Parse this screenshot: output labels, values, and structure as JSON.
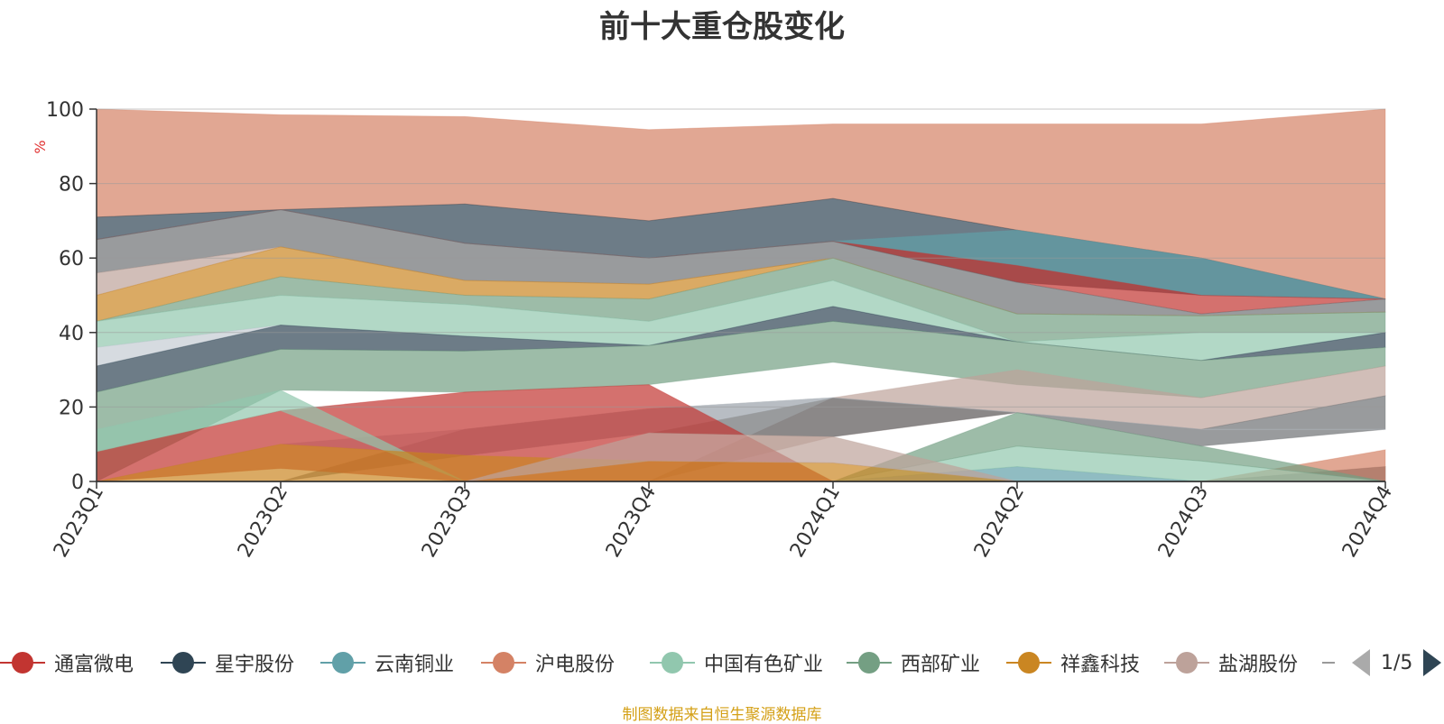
{
  "chart_data": {
    "type": "area",
    "title": "前十大重仓股变化",
    "ylabel": "%",
    "ylim": [
      0,
      100
    ],
    "yticks": [
      0,
      20,
      40,
      60,
      80,
      100
    ],
    "categories": [
      "2023Q1",
      "2023Q2",
      "2023Q3",
      "2023Q4",
      "2024Q1",
      "2024Q2",
      "2024Q3",
      "2024Q4"
    ],
    "grid": true,
    "legend_position": "bottom",
    "series": [
      {
        "name": "通富微电",
        "color": "#c23531",
        "opacity": 0.7,
        "values": [
          [
            0,
            8
          ],
          [
            3.5,
            19
          ],
          [
            0,
            24
          ],
          [
            0,
            26
          ],
          [
            0,
            0
          ],
          [
            0,
            0
          ],
          [
            0,
            0
          ],
          [
            0,
            0
          ]
        ]
      },
      {
        "name": "星宇股份",
        "color": "#2f4554",
        "opacity": 0.7,
        "values": [
          [
            0,
            0
          ],
          [
            0,
            0
          ],
          [
            0,
            0
          ],
          [
            0,
            0
          ],
          [
            0,
            0
          ],
          [
            0,
            0
          ],
          [
            0,
            0
          ],
          [
            0,
            4
          ]
        ]
      },
      {
        "name": "云南铜业",
        "color": "#61a0a8",
        "opacity": 0.7,
        "values": [
          [
            0,
            0
          ],
          [
            0,
            0
          ],
          [
            0,
            0
          ],
          [
            0,
            0
          ],
          [
            0,
            0
          ],
          [
            0,
            4
          ],
          [
            0,
            0
          ],
          [
            0,
            0
          ]
        ]
      },
      {
        "name": "沪电股份",
        "color": "#d48265",
        "opacity": 0.7,
        "values": [
          [
            0,
            0
          ],
          [
            0,
            0
          ],
          [
            0,
            0
          ],
          [
            0,
            0
          ],
          [
            0,
            0
          ],
          [
            0,
            0
          ],
          [
            0,
            0
          ],
          [
            0,
            8.5
          ]
        ]
      },
      {
        "name": "中国有色矿业",
        "color": "#91c7ae",
        "opacity": 0.7,
        "values": [
          [
            8,
            14
          ],
          [
            19,
            24.5
          ],
          [
            0,
            0
          ],
          [
            0,
            0
          ],
          [
            0,
            0
          ],
          [
            4,
            9.5
          ],
          [
            0,
            5.5
          ],
          [
            0,
            0
          ]
        ]
      },
      {
        "name": "西部矿业",
        "color": "#749f83",
        "opacity": 0.7,
        "values": [
          [
            0,
            0
          ],
          [
            0,
            0
          ],
          [
            0,
            0
          ],
          [
            0,
            0
          ],
          [
            0,
            0
          ],
          [
            9.5,
            18.5
          ],
          [
            5.5,
            9.5
          ],
          [
            0,
            0
          ]
        ]
      },
      {
        "name": "祥鑫科技",
        "color": "#ca8622",
        "opacity": 0.7,
        "values": [
          [
            0,
            0
          ],
          [
            0,
            10
          ],
          [
            0,
            7
          ],
          [
            0,
            5.5
          ],
          [
            0,
            5
          ],
          [
            0,
            0
          ],
          [
            0,
            0
          ],
          [
            0,
            0
          ]
        ]
      },
      {
        "name": "盐湖股份",
        "color": "#bda29a",
        "opacity": 0.7,
        "values": [
          [
            0,
            0
          ],
          [
            0,
            0
          ],
          [
            0,
            0
          ],
          [
            5.5,
            13
          ],
          [
            5,
            12
          ],
          [
            0,
            0
          ],
          [
            0,
            0
          ],
          [
            0,
            0
          ]
        ]
      }
    ],
    "background_layers": [
      {
        "color": "#d48265",
        "opacity": 0.7,
        "values": [
          [
            71,
            100
          ],
          [
            73,
            98.5
          ],
          [
            74.5,
            98
          ],
          [
            70,
            94.5
          ],
          [
            76,
            96
          ],
          [
            67.5,
            96
          ],
          [
            60,
            96
          ],
          [
            49,
            100
          ]
        ]
      },
      {
        "color": "#2f4554",
        "opacity": 0.7,
        "values": [
          [
            65,
            71
          ],
          [
            73,
            73
          ],
          [
            64,
            74.5
          ],
          [
            60,
            70
          ],
          [
            64.5,
            76
          ],
          [
            53.5,
            67.5
          ],
          [
            50,
            60
          ],
          [
            49,
            49
          ]
        ]
      },
      {
        "color": "#61a0a8",
        "opacity": 0.7,
        "values": [
          [
            65,
            65
          ],
          [
            73,
            73
          ],
          [
            64,
            64
          ],
          [
            60,
            60
          ],
          [
            64.5,
            64.5
          ],
          [
            58,
            67.5
          ],
          [
            50,
            60
          ],
          [
            49,
            49
          ]
        ]
      },
      {
        "color": "#c23531",
        "opacity": 0.7,
        "values": [
          [
            65,
            65
          ],
          [
            73,
            73
          ],
          [
            64,
            64
          ],
          [
            60,
            60
          ],
          [
            64.5,
            64.5
          ],
          [
            53.5,
            58
          ],
          [
            45,
            50
          ],
          [
            49,
            49
          ]
        ]
      },
      {
        "color": "#6e7074",
        "opacity": 0.7,
        "values": [
          [
            56,
            65
          ],
          [
            63,
            73
          ],
          [
            54,
            64
          ],
          [
            53,
            60
          ],
          [
            60,
            64.5
          ],
          [
            45,
            53.5
          ],
          [
            44.5,
            45
          ],
          [
            45.5,
            49
          ]
        ]
      },
      {
        "color": "#bda29a",
        "opacity": 0.7,
        "values": [
          [
            50,
            56
          ],
          [
            63,
            63
          ],
          [
            54,
            54
          ],
          [
            53,
            53
          ],
          [
            60,
            60
          ],
          [
            45,
            45
          ],
          [
            44.5,
            44.5
          ],
          [
            45.5,
            45.5
          ]
        ]
      },
      {
        "color": "#ca8622",
        "opacity": 0.7,
        "values": [
          [
            43,
            50
          ],
          [
            55,
            63
          ],
          [
            50,
            54
          ],
          [
            49,
            53
          ],
          [
            60,
            60
          ],
          [
            45,
            45
          ],
          [
            44.5,
            44.5
          ],
          [
            45.5,
            45.5
          ]
        ]
      },
      {
        "color": "#749f83",
        "opacity": 0.7,
        "values": [
          [
            43,
            43
          ],
          [
            50,
            55
          ],
          [
            47.5,
            50
          ],
          [
            43,
            49
          ],
          [
            54,
            60
          ],
          [
            37.5,
            45
          ],
          [
            40,
            44.5
          ],
          [
            40,
            45.5
          ]
        ]
      },
      {
        "color": "#91c7ae",
        "opacity": 0.7,
        "values": [
          [
            36,
            43
          ],
          [
            42,
            50
          ],
          [
            39,
            47.5
          ],
          [
            36.5,
            43
          ],
          [
            47,
            54
          ],
          [
            37.5,
            37.5
          ],
          [
            32.5,
            40
          ],
          [
            40,
            40
          ]
        ]
      },
      {
        "color": "#c4ccd3",
        "opacity": 0.7,
        "values": [
          [
            31,
            36
          ],
          [
            42,
            42
          ],
          [
            39,
            39
          ],
          [
            36.5,
            36.5
          ],
          [
            47,
            47
          ],
          [
            37.5,
            37.5
          ],
          [
            32.5,
            32.5
          ],
          [
            40,
            40
          ]
        ]
      },
      {
        "color": "#2f4554",
        "opacity": 0.7,
        "values": [
          [
            24,
            31
          ],
          [
            35.5,
            42
          ],
          [
            35,
            39
          ],
          [
            36.5,
            36.5
          ],
          [
            43,
            47
          ],
          [
            37.5,
            37.5
          ],
          [
            32.5,
            32.5
          ],
          [
            36,
            40
          ]
        ]
      },
      {
        "color": "#749f83",
        "opacity": 0.7,
        "values": [
          [
            0,
            24
          ],
          [
            24.5,
            35.5
          ],
          [
            24,
            35
          ],
          [
            26,
            36.5
          ],
          [
            32,
            43
          ],
          [
            26,
            37.5
          ],
          [
            22.5,
            32.5
          ],
          [
            31,
            36
          ]
        ]
      },
      {
        "color": "#bda29a",
        "opacity": 0.7,
        "values": [
          [
            0,
            0
          ],
          [
            0,
            0
          ],
          [
            0,
            0
          ],
          [
            0,
            0
          ],
          [
            12,
            22.5
          ],
          [
            18.5,
            30
          ],
          [
            14,
            22.5
          ],
          [
            23,
            31
          ]
        ]
      },
      {
        "color": "#6e7074",
        "opacity": 0.7,
        "values": [
          [
            0,
            0
          ],
          [
            0,
            0
          ],
          [
            7,
            14
          ],
          [
            13,
            19.5
          ],
          [
            12,
            22.5
          ],
          [
            18.5,
            18.5
          ],
          [
            9.5,
            14
          ],
          [
            14,
            23
          ]
        ]
      },
      {
        "color": "#c4ccd3",
        "opacity": 0.7,
        "values": [
          [
            0,
            0
          ],
          [
            10,
            10
          ],
          [
            7,
            14
          ],
          [
            13,
            19.5
          ],
          [
            22.5,
            22.5
          ],
          [
            18.5,
            18.5
          ],
          [
            14,
            14
          ],
          [
            14,
            14
          ]
        ]
      }
    ]
  },
  "legend": {
    "items": [
      {
        "label": "通富微电",
        "color": "#c23531"
      },
      {
        "label": "星宇股份",
        "color": "#2f4554"
      },
      {
        "label": "云南铜业",
        "color": "#61a0a8"
      },
      {
        "label": "沪电股份",
        "color": "#d48265"
      },
      {
        "label": "中国有色矿业",
        "color": "#91c7ae"
      },
      {
        "label": "西部矿业",
        "color": "#749f83"
      },
      {
        "label": "祥鑫科技",
        "color": "#ca8622"
      },
      {
        "label": "盐湖股份",
        "color": "#bda29a"
      }
    ],
    "page_text": "1/5"
  },
  "footer": {
    "source": "制图数据来自恒生聚源数据库"
  }
}
